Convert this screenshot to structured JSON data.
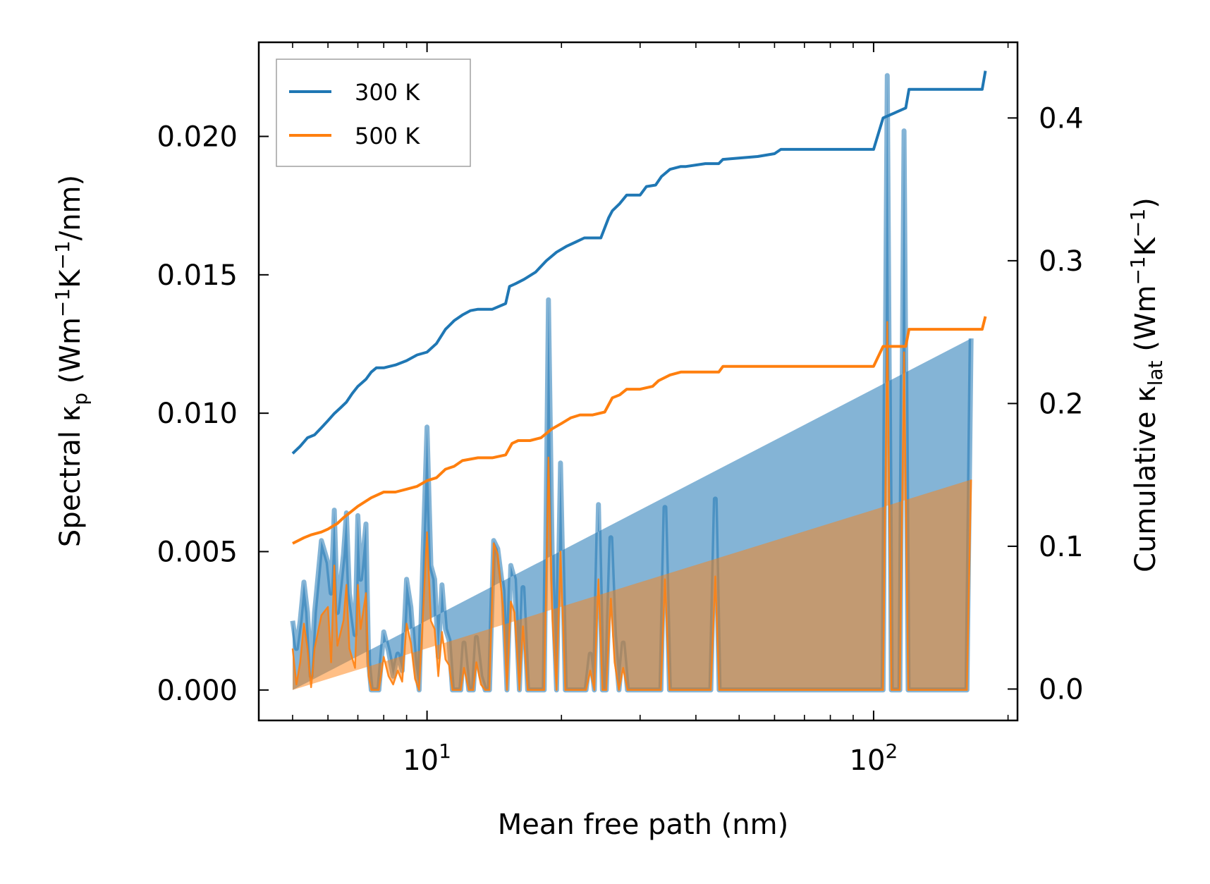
{
  "chart_data": {
    "type": "line",
    "xscale": "log",
    "xlabel": "Mean free path (nm)",
    "ylabel_left": "Spectral κ_p (Wm⁻¹K⁻¹/nm)",
    "ylabel_right": "Cumulative κ_lat (Wm⁻¹K⁻¹)",
    "xlim": [
      4.2,
      210
    ],
    "ylim_left": [
      -0.0011,
      0.0234
    ],
    "ylim_right": [
      -0.022,
      0.453
    ],
    "xticks": [
      {
        "value": 10,
        "label": "10",
        "exp": "1"
      },
      {
        "value": 100,
        "label": "10",
        "exp": "2"
      }
    ],
    "yticks_left": [
      {
        "value": 0.0,
        "label": "0.000"
      },
      {
        "value": 0.005,
        "label": "0.005"
      },
      {
        "value": 0.01,
        "label": "0.010"
      },
      {
        "value": 0.015,
        "label": "0.015"
      },
      {
        "value": 0.02,
        "label": "0.020"
      }
    ],
    "yticks_right": [
      {
        "value": 0.0,
        "label": "0.0"
      },
      {
        "value": 0.1,
        "label": "0.1"
      },
      {
        "value": 0.2,
        "label": "0.2"
      },
      {
        "value": 0.3,
        "label": "0.3"
      },
      {
        "value": 0.4,
        "label": "0.4"
      }
    ],
    "legend": {
      "location": "upper-left",
      "entries": [
        {
          "label": "300 K",
          "color": "#1f77b4"
        },
        {
          "label": "500 K",
          "color": "#ff7f0e"
        }
      ]
    },
    "spectral_x": [
      5.0,
      5.1,
      5.2,
      5.3,
      5.4,
      5.5,
      5.6,
      5.8,
      6.0,
      6.1,
      6.2,
      6.3,
      6.5,
      6.6,
      6.7,
      6.9,
      7.0,
      7.1,
      7.3,
      7.4,
      7.5,
      7.6,
      7.7,
      7.8,
      8.0,
      8.2,
      8.4,
      8.6,
      8.8,
      9.0,
      9.2,
      9.4,
      9.6,
      9.8,
      10.0,
      10.2,
      10.4,
      10.6,
      10.8,
      11.0,
      11.2,
      11.4,
      11.6,
      11.9,
      12.1,
      12.4,
      12.7,
      12.9,
      13.2,
      13.5,
      13.8,
      14.1,
      14.4,
      14.8,
      15.1,
      15.4,
      15.7,
      16.1,
      16.4,
      16.8,
      17.1,
      17.5,
      17.9,
      18.3,
      18.7,
      19.1,
      19.5,
      19.9,
      20.4,
      20.8,
      21.3,
      21.7,
      22.2,
      22.7,
      23.2,
      23.7,
      24.2,
      24.7,
      25.2,
      25.8,
      26.3,
      26.9,
      27.5,
      28.1,
      28.7,
      29.3,
      30.0,
      30.6,
      31.3,
      32.0,
      32.7,
      33.4,
      34.1,
      34.9,
      35.6,
      36.4,
      37.2,
      38.0,
      38.8,
      39.7,
      40.5,
      41.4,
      42.3,
      43.2,
      44.2,
      45.1,
      46.1,
      47.1,
      48.2,
      49.2,
      50.3,
      51.4,
      52.5,
      53.7,
      54.9,
      56.1,
      57.3,
      58.5,
      59.8,
      61.1,
      62.5,
      63.8,
      65.2,
      66.7,
      68.1,
      69.6,
      71.2,
      72.7,
      74.3,
      75.9,
      77.6,
      79.3,
      81.0,
      82.8,
      84.6,
      86.5,
      88.4,
      90.3,
      92.2,
      94.3,
      96.3,
      98.4,
      100.6,
      102.8,
      105.0,
      107.3,
      109.6,
      112.0,
      114.5,
      117.0,
      119.5,
      122.1,
      124.8,
      127.5,
      130.3,
      133.2,
      136.1,
      139.0,
      142.1,
      145.2,
      148.4,
      151.6,
      154.9,
      158.3,
      161.8,
      165.3,
      168.9,
      172.6,
      176.0
    ],
    "series": [
      {
        "name": "300 K",
        "color": "#1f77b4",
        "spectral": [
          0.0025,
          0.0015,
          0.0025,
          0.0039,
          0.0028,
          0.0005,
          0.0028,
          0.0054,
          0.0046,
          0.0035,
          0.0065,
          0.0028,
          0.0049,
          0.0064,
          0.0035,
          0.002,
          0.0063,
          0.004,
          0.006,
          0.001,
          0.0,
          0.0,
          0.0,
          0.0,
          0.0021,
          0.0014,
          0.0005,
          0.0013,
          0.0007,
          0.004,
          0.003,
          0.001,
          0.0,
          0.005,
          0.0095,
          0.0045,
          0.004,
          0.0012,
          0.0038,
          0.0022,
          0.0018,
          0.0,
          0.0,
          0.0,
          0.0017,
          0.0,
          0.0,
          0.0019,
          0.0005,
          0.0,
          0.0,
          0.0054,
          0.0051,
          0.0036,
          0.0,
          0.0045,
          0.004,
          0.0,
          0.0037,
          0.0,
          0.0,
          0.0,
          0.0,
          0.0,
          0.0141,
          0.004,
          0.0,
          0.0082,
          0.0,
          0.0,
          0.0,
          0.0,
          0.0,
          0.0,
          0.0013,
          0.0,
          0.0067,
          0.0,
          0.0,
          0.0055,
          0.002,
          0.0,
          0.0017,
          0.0,
          0.0,
          0.0,
          0.0,
          0.0,
          0.0,
          0.0,
          0.0,
          0.0,
          0.0066,
          0.0,
          0.0,
          0.0,
          0.0,
          0.0,
          0.0,
          0.0,
          0.0,
          0.0,
          0.0,
          0.0,
          0.0069,
          0.0,
          0.0,
          0.0,
          0.0,
          0.0,
          0.0,
          0.0,
          0.0,
          0.0,
          0.0,
          0.0,
          0.0,
          0.0,
          0.0,
          0.0,
          0.0,
          0.0,
          0.0,
          0.0,
          0.0,
          0.0,
          0.0,
          0.0,
          0.0,
          0.0,
          0.0,
          0.0,
          0.0,
          0.0,
          0.0,
          0.0,
          0.0,
          0.0,
          0.0,
          0.0,
          0.0,
          0.0,
          0.0,
          0.0,
          0.0,
          0.0222,
          0.0,
          0.0,
          0.0,
          0.0202,
          0.0,
          0.0,
          0.0,
          0.0,
          0.0,
          0.0,
          0.0,
          0.0,
          0.0,
          0.0,
          0.0,
          0.0,
          0.0,
          0.0,
          0.0,
          0.0127
        ],
        "cumulative_x": [
          5.0,
          5.2,
          5.4,
          5.6,
          5.8,
          6.0,
          6.2,
          6.4,
          6.6,
          6.8,
          7.0,
          7.3,
          7.5,
          7.7,
          8.0,
          8.5,
          9.0,
          9.5,
          10.0,
          10.5,
          11.0,
          11.5,
          12.0,
          12.5,
          13.0,
          14.0,
          15.0,
          15.3,
          15.8,
          16.5,
          17.5,
          18.5,
          19.5,
          20.5,
          21.5,
          22.5,
          23.5,
          24.5,
          25.5,
          26.0,
          27.0,
          28.0,
          30.0,
          31.0,
          32.5,
          33.5,
          35.0,
          37.0,
          38.0,
          42.0,
          45.0,
          46.0,
          55.0,
          60.0,
          62.0,
          100.0,
          105.0,
          118.0,
          120.0,
          175.0,
          178.0
        ],
        "cumulative": [
          0.165,
          0.17,
          0.176,
          0.178,
          0.183,
          0.188,
          0.193,
          0.197,
          0.201,
          0.207,
          0.212,
          0.217,
          0.222,
          0.225,
          0.225,
          0.227,
          0.23,
          0.234,
          0.236,
          0.242,
          0.252,
          0.258,
          0.262,
          0.265,
          0.266,
          0.266,
          0.27,
          0.282,
          0.284,
          0.287,
          0.292,
          0.3,
          0.306,
          0.31,
          0.313,
          0.316,
          0.316,
          0.316,
          0.33,
          0.335,
          0.34,
          0.346,
          0.346,
          0.352,
          0.353,
          0.359,
          0.364,
          0.366,
          0.366,
          0.368,
          0.368,
          0.371,
          0.373,
          0.375,
          0.378,
          0.378,
          0.4,
          0.407,
          0.42,
          0.42,
          0.433
        ]
      },
      {
        "name": "500 K",
        "color": "#ff7f0e",
        "spectral": [
          0.0015,
          0.0002,
          0.001,
          0.0024,
          0.0015,
          0.0001,
          0.0015,
          0.0027,
          0.003,
          0.001,
          0.0045,
          0.0016,
          0.0025,
          0.0038,
          0.0015,
          0.0008,
          0.0038,
          0.0022,
          0.0035,
          0.0005,
          0.0,
          0.0,
          0.0,
          0.0,
          0.0012,
          0.0005,
          0.0002,
          0.0007,
          0.0003,
          0.0024,
          0.0017,
          0.0004,
          0.0,
          0.0028,
          0.0057,
          0.0025,
          0.0022,
          0.0005,
          0.0021,
          0.0011,
          0.0009,
          0.0,
          0.0,
          0.0,
          0.0008,
          0.0,
          0.0,
          0.001,
          0.0002,
          0.0,
          0.0,
          0.0053,
          0.0049,
          0.003,
          0.0,
          0.0032,
          0.0028,
          0.0,
          0.0023,
          0.0,
          0.0,
          0.0,
          0.0,
          0.0,
          0.0084,
          0.0025,
          0.0,
          0.005,
          0.0,
          0.0,
          0.0,
          0.0,
          0.0,
          0.0,
          0.0007,
          0.0,
          0.004,
          0.0,
          0.0,
          0.0033,
          0.001,
          0.0,
          0.0008,
          0.0,
          0.0,
          0.0,
          0.0,
          0.0,
          0.0,
          0.0,
          0.0,
          0.0,
          0.004,
          0.0,
          0.0,
          0.0,
          0.0,
          0.0,
          0.0,
          0.0,
          0.0,
          0.0,
          0.0,
          0.0,
          0.0041,
          0.0,
          0.0,
          0.0,
          0.0,
          0.0,
          0.0,
          0.0,
          0.0,
          0.0,
          0.0,
          0.0,
          0.0,
          0.0,
          0.0,
          0.0,
          0.0,
          0.0,
          0.0,
          0.0,
          0.0,
          0.0,
          0.0,
          0.0,
          0.0,
          0.0,
          0.0,
          0.0,
          0.0,
          0.0,
          0.0,
          0.0,
          0.0,
          0.0,
          0.0,
          0.0,
          0.0,
          0.0,
          0.0,
          0.0,
          0.0,
          0.0133,
          0.0,
          0.0,
          0.0,
          0.0122,
          0.0,
          0.0,
          0.0,
          0.0,
          0.0,
          0.0,
          0.0,
          0.0,
          0.0,
          0.0,
          0.0,
          0.0,
          0.0,
          0.0,
          0.0,
          0.0076
        ],
        "cumulative_x": [
          5.0,
          5.3,
          5.5,
          5.8,
          6.0,
          6.3,
          6.5,
          7.0,
          7.5,
          8.0,
          8.5,
          9.0,
          9.5,
          10.0,
          10.5,
          11.0,
          11.5,
          12.0,
          13.0,
          14.0,
          15.0,
          15.5,
          16.0,
          17.0,
          18.0,
          19.0,
          20.0,
          21.0,
          22.0,
          23.5,
          25.0,
          26.0,
          27.0,
          28.0,
          30.0,
          32.0,
          33.0,
          35.0,
          37.0,
          40.0,
          45.0,
          46.0,
          60.0,
          100.0,
          105.0,
          118.0,
          120.0,
          175.0,
          178.0
        ],
        "cumulative": [
          0.102,
          0.106,
          0.108,
          0.11,
          0.112,
          0.116,
          0.12,
          0.128,
          0.134,
          0.138,
          0.138,
          0.14,
          0.142,
          0.146,
          0.148,
          0.154,
          0.156,
          0.16,
          0.162,
          0.162,
          0.164,
          0.172,
          0.174,
          0.174,
          0.176,
          0.182,
          0.186,
          0.19,
          0.192,
          0.192,
          0.194,
          0.204,
          0.206,
          0.21,
          0.21,
          0.212,
          0.216,
          0.22,
          0.222,
          0.222,
          0.222,
          0.226,
          0.226,
          0.226,
          0.24,
          0.24,
          0.252,
          0.252,
          0.261
        ]
      }
    ]
  }
}
